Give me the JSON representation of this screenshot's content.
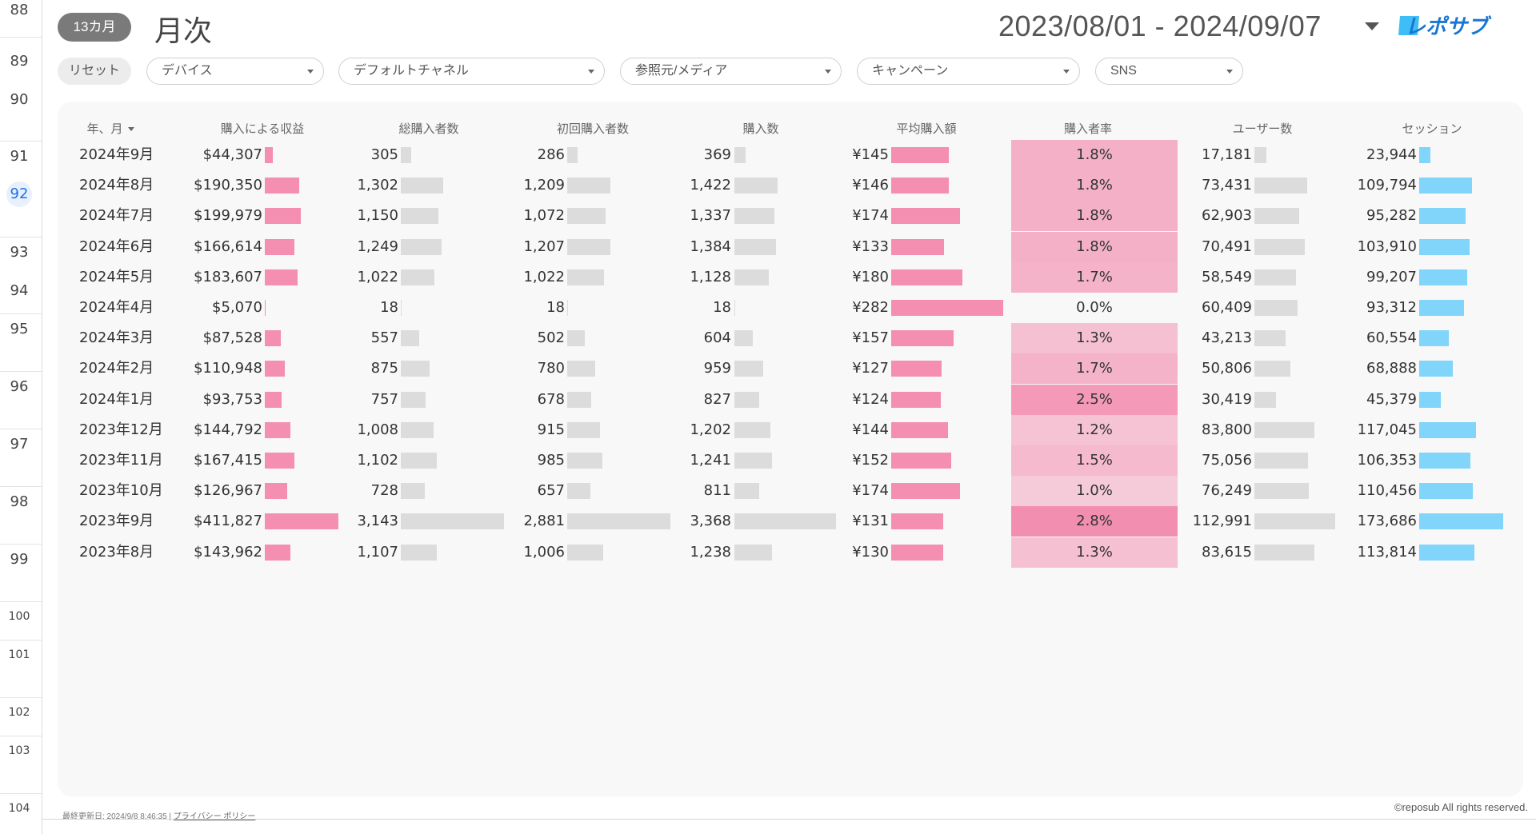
{
  "gutter": {
    "row_numbers": [
      "88",
      "89",
      "90",
      "91",
      "92",
      "93",
      "94",
      "95",
      "96",
      "97",
      "98",
      "99",
      "100",
      "101",
      "102",
      "103",
      "104"
    ],
    "selected": "92"
  },
  "header": {
    "range_badge": "13カ月",
    "title": "月次",
    "date_range": "2023/08/01 - 2024/09/07",
    "logo_text": "レポサブ"
  },
  "filters": {
    "reset_label": "リセット",
    "items": [
      "デバイス",
      "デフォルトチャネル",
      "参照元/メディア",
      "キャンペーン",
      "SNS"
    ]
  },
  "table": {
    "columns": [
      "年、月",
      "購入による収益",
      "総購入者数",
      "初回購入者数",
      "購入数",
      "平均購入額",
      "購入者率",
      "ユーザー数",
      "セッション"
    ],
    "rows": [
      {
        "month": "2024年9月",
        "revenue": "$44,307",
        "revenue_v": 44307,
        "buyers": "305",
        "buyers_v": 305,
        "first": "286",
        "first_v": 286,
        "purchases": "369",
        "purchases_v": 369,
        "avg": "¥145",
        "avg_v": 145,
        "rate": "1.8%",
        "rate_v": 1.8,
        "users": "17,181",
        "users_v": 17181,
        "sessions": "23,944",
        "sessions_v": 23944
      },
      {
        "month": "2024年8月",
        "revenue": "$190,350",
        "revenue_v": 190350,
        "buyers": "1,302",
        "buyers_v": 1302,
        "first": "1,209",
        "first_v": 1209,
        "purchases": "1,422",
        "purchases_v": 1422,
        "avg": "¥146",
        "avg_v": 146,
        "rate": "1.8%",
        "rate_v": 1.8,
        "users": "73,431",
        "users_v": 73431,
        "sessions": "109,794",
        "sessions_v": 109794
      },
      {
        "month": "2024年7月",
        "revenue": "$199,979",
        "revenue_v": 199979,
        "buyers": "1,150",
        "buyers_v": 1150,
        "first": "1,072",
        "first_v": 1072,
        "purchases": "1,337",
        "purchases_v": 1337,
        "avg": "¥174",
        "avg_v": 174,
        "rate": "1.8%",
        "rate_v": 1.8,
        "users": "62,903",
        "users_v": 62903,
        "sessions": "95,282",
        "sessions_v": 95282
      },
      {
        "month": "2024年6月",
        "revenue": "$166,614",
        "revenue_v": 166614,
        "buyers": "1,249",
        "buyers_v": 1249,
        "first": "1,207",
        "first_v": 1207,
        "purchases": "1,384",
        "purchases_v": 1384,
        "avg": "¥133",
        "avg_v": 133,
        "rate": "1.8%",
        "rate_v": 1.8,
        "users": "70,491",
        "users_v": 70491,
        "sessions": "103,910",
        "sessions_v": 103910
      },
      {
        "month": "2024年5月",
        "revenue": "$183,607",
        "revenue_v": 183607,
        "buyers": "1,022",
        "buyers_v": 1022,
        "first": "1,022",
        "first_v": 1022,
        "purchases": "1,128",
        "purchases_v": 1128,
        "avg": "¥180",
        "avg_v": 180,
        "rate": "1.7%",
        "rate_v": 1.7,
        "users": "58,549",
        "users_v": 58549,
        "sessions": "99,207",
        "sessions_v": 99207
      },
      {
        "month": "2024年4月",
        "revenue": "$5,070",
        "revenue_v": 5070,
        "buyers": "18",
        "buyers_v": 18,
        "first": "18",
        "first_v": 18,
        "purchases": "18",
        "purchases_v": 18,
        "avg": "¥282",
        "avg_v": 282,
        "rate": "0.0%",
        "rate_v": 0.0,
        "users": "60,409",
        "users_v": 60409,
        "sessions": "93,312",
        "sessions_v": 93312
      },
      {
        "month": "2024年3月",
        "revenue": "$87,528",
        "revenue_v": 87528,
        "buyers": "557",
        "buyers_v": 557,
        "first": "502",
        "first_v": 502,
        "purchases": "604",
        "purchases_v": 604,
        "avg": "¥157",
        "avg_v": 157,
        "rate": "1.3%",
        "rate_v": 1.3,
        "users": "43,213",
        "users_v": 43213,
        "sessions": "60,554",
        "sessions_v": 60554
      },
      {
        "month": "2024年2月",
        "revenue": "$110,948",
        "revenue_v": 110948,
        "buyers": "875",
        "buyers_v": 875,
        "first": "780",
        "first_v": 780,
        "purchases": "959",
        "purchases_v": 959,
        "avg": "¥127",
        "avg_v": 127,
        "rate": "1.7%",
        "rate_v": 1.7,
        "users": "50,806",
        "users_v": 50806,
        "sessions": "68,888",
        "sessions_v": 68888
      },
      {
        "month": "2024年1月",
        "revenue": "$93,753",
        "revenue_v": 93753,
        "buyers": "757",
        "buyers_v": 757,
        "first": "678",
        "first_v": 678,
        "purchases": "827",
        "purchases_v": 827,
        "avg": "¥124",
        "avg_v": 124,
        "rate": "2.5%",
        "rate_v": 2.5,
        "users": "30,419",
        "users_v": 30419,
        "sessions": "45,379",
        "sessions_v": 45379
      },
      {
        "month": "2023年12月",
        "revenue": "$144,792",
        "revenue_v": 144792,
        "buyers": "1,008",
        "buyers_v": 1008,
        "first": "915",
        "first_v": 915,
        "purchases": "1,202",
        "purchases_v": 1202,
        "avg": "¥144",
        "avg_v": 144,
        "rate": "1.2%",
        "rate_v": 1.2,
        "users": "83,800",
        "users_v": 83800,
        "sessions": "117,045",
        "sessions_v": 117045
      },
      {
        "month": "2023年11月",
        "revenue": "$167,415",
        "revenue_v": 167415,
        "buyers": "1,102",
        "buyers_v": 1102,
        "first": "985",
        "first_v": 985,
        "purchases": "1,241",
        "purchases_v": 1241,
        "avg": "¥152",
        "avg_v": 152,
        "rate": "1.5%",
        "rate_v": 1.5,
        "users": "75,056",
        "users_v": 75056,
        "sessions": "106,353",
        "sessions_v": 106353
      },
      {
        "month": "2023年10月",
        "revenue": "$126,967",
        "revenue_v": 126967,
        "buyers": "728",
        "buyers_v": 728,
        "first": "657",
        "first_v": 657,
        "purchases": "811",
        "purchases_v": 811,
        "avg": "¥174",
        "avg_v": 174,
        "rate": "1.0%",
        "rate_v": 1.0,
        "users": "76,249",
        "users_v": 76249,
        "sessions": "110,456",
        "sessions_v": 110456
      },
      {
        "month": "2023年9月",
        "revenue": "$411,827",
        "revenue_v": 411827,
        "buyers": "3,143",
        "buyers_v": 3143,
        "first": "2,881",
        "first_v": 2881,
        "purchases": "3,368",
        "purchases_v": 3368,
        "avg": "¥131",
        "avg_v": 131,
        "rate": "2.8%",
        "rate_v": 2.8,
        "users": "112,991",
        "users_v": 112991,
        "sessions": "173,686",
        "sessions_v": 173686
      },
      {
        "month": "2023年8月",
        "revenue": "$143,962",
        "revenue_v": 143962,
        "buyers": "1,107",
        "buyers_v": 1107,
        "first": "1,006",
        "first_v": 1006,
        "purchases": "1,238",
        "purchases_v": 1238,
        "avg": "¥130",
        "avg_v": 130,
        "rate": "1.3%",
        "rate_v": 1.3,
        "users": "83,615",
        "users_v": 83615,
        "sessions": "113,814",
        "sessions_v": 113814
      }
    ]
  },
  "colors": {
    "pink_bar": "#f48fb1",
    "grey_bar": "#dcdcdc",
    "blue_bar": "#81d4fa",
    "heat_base": "#f06292"
  },
  "footer": {
    "last_updated": "最終更新日: 2024/9/8 8:46:35",
    "privacy_link": "プライバシー ポリシー",
    "copyright": "©reposub All rights reserved."
  }
}
